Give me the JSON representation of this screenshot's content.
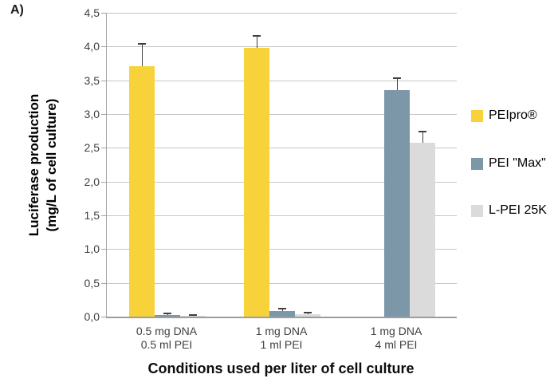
{
  "panel_label": "A)",
  "chart_data": {
    "type": "bar",
    "title": "",
    "xlabel": "Conditions used per liter of cell culture",
    "ylabel_lines": [
      "Luciferase production",
      "(mg/L of cell culture)"
    ],
    "categories": [
      [
        "0.5 mg DNA",
        "0.5 ml PEI"
      ],
      [
        "1 mg DNA",
        "1 ml PEI"
      ],
      [
        "1 mg DNA",
        "4 ml PEI"
      ]
    ],
    "series": [
      {
        "name": "PEIpro®",
        "color": "#F8D23A",
        "values": [
          3.71,
          3.98,
          null
        ],
        "errors": [
          0.34,
          0.19,
          null
        ]
      },
      {
        "name": "PEI \"Max\"",
        "color": "#7C97A8",
        "values": [
          0.02,
          0.08,
          3.35
        ],
        "errors": [
          0.03,
          0.05,
          0.19
        ]
      },
      {
        "name": "L-PEI 25K",
        "color": "#DBDBDB",
        "values": [
          0.01,
          0.04,
          2.57
        ],
        "errors": [
          0.02,
          0.04,
          0.18
        ]
      }
    ],
    "ylim": [
      0,
      4.5
    ],
    "ytick_step": 0.5,
    "ytick_labels": [
      "0,0",
      "0,5",
      "1,0",
      "1,5",
      "2,0",
      "2,5",
      "3,0",
      "3,5",
      "4,0",
      "4,5"
    ],
    "grid": true,
    "legend_position": "right",
    "error_bars": "upper-only"
  },
  "style_colors": {
    "gridline": "#c6c6c6",
    "axis_line": "#a3a3a3",
    "error_bar": "#3f3f3f",
    "tick_text": "#3f3f3f"
  }
}
